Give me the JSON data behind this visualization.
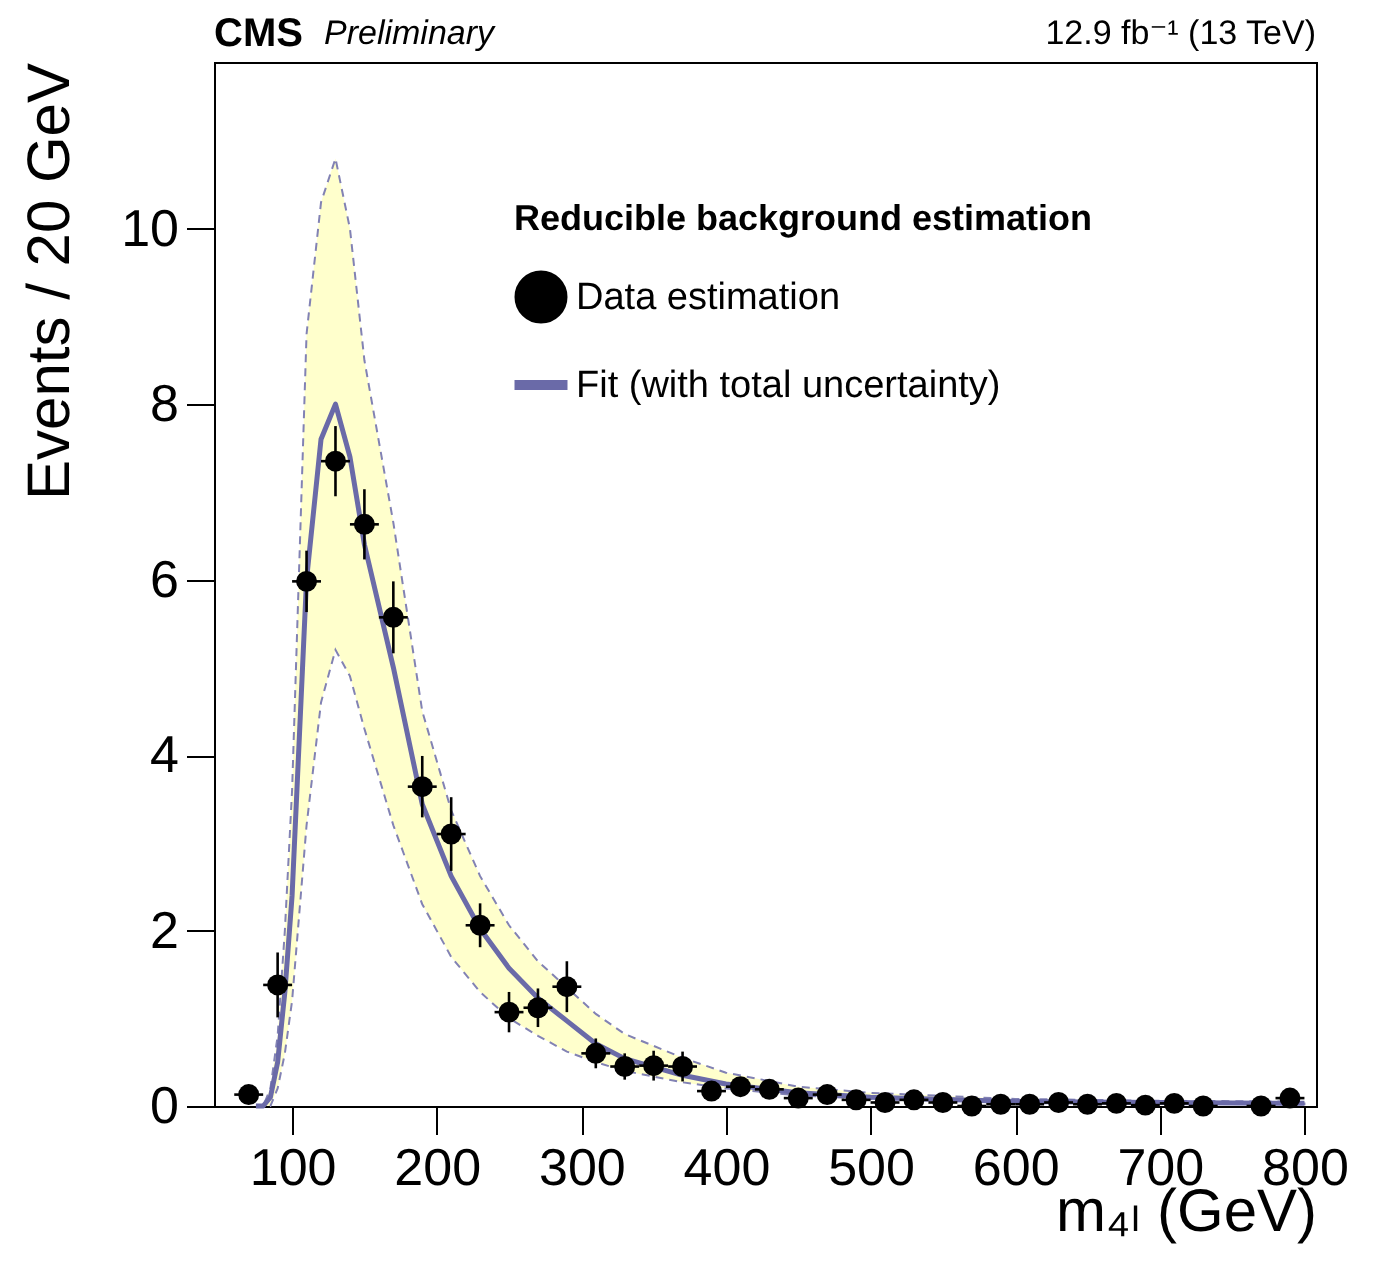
{
  "chart_data": {
    "type": "scatter",
    "title": "CMS",
    "subtitle": "Preliminary",
    "annotations": [
      "12.9 fb⁻¹ (13 TeV)"
    ],
    "xlabel": "m₄ₗ (GeV)",
    "ylabel": "Events / 20 GeV",
    "legend_title": "Reducible background estimation",
    "xlim": [
      46,
      808
    ],
    "xticks": [
      100,
      200,
      300,
      400,
      500,
      600,
      700,
      800
    ],
    "ylim": [
      0,
      11.9
    ],
    "yticks": [
      0,
      2,
      4,
      6,
      8,
      10
    ],
    "grid": false,
    "legend": "top right",
    "series": [
      {
        "name": "Data estimation",
        "color": "#000000",
        "marker": "circle",
        "x": [
          70,
          90,
          110,
          130,
          150,
          170,
          190,
          210,
          230,
          250,
          270,
          290,
          310,
          330,
          350,
          370,
          390,
          410,
          430,
          450,
          470,
          490,
          510,
          530,
          550,
          570,
          590,
          610,
          630,
          650,
          670,
          690,
          710,
          730,
          770,
          790
        ],
        "values": [
          0.13,
          1.38,
          5.98,
          7.35,
          6.63,
          5.57,
          3.64,
          3.1,
          2.06,
          1.07,
          1.12,
          1.36,
          0.6,
          0.45,
          0.46,
          0.45,
          0.17,
          0.22,
          0.19,
          0.09,
          0.13,
          0.07,
          0.04,
          0.07,
          0.04,
          0,
          0.02,
          0.02,
          0.04,
          0.02,
          0.03,
          0.01,
          0.03,
          0,
          0,
          0.09
        ],
        "errors": [
          null,
          0.37,
          0.35,
          0.4,
          0.4,
          0.41,
          0.35,
          0.42,
          0.25,
          0.23,
          0.22,
          0.29,
          0.17,
          0.15,
          0.17,
          0.17,
          null,
          null,
          null,
          null,
          null,
          null,
          null,
          null,
          null,
          null,
          null,
          null,
          null,
          null,
          null,
          null,
          null,
          null,
          null,
          null
        ],
        "xerrors": [
          10,
          10,
          10,
          10,
          10,
          10,
          10,
          10,
          10,
          10,
          10,
          10,
          10,
          10,
          10,
          10,
          10,
          10,
          10,
          10,
          10,
          10,
          10,
          10,
          10,
          10,
          10,
          10,
          10,
          10,
          10,
          10,
          10,
          10,
          10,
          10
        ]
      },
      {
        "name": "Fit (with total uncertainty)",
        "type": "line",
        "color": "#6a6aa8",
        "marker": "none",
        "line_style": "solid",
        "x": [
          75,
          80,
          85,
          90,
          95,
          100,
          105,
          110,
          120,
          130,
          140,
          150,
          170,
          190,
          210,
          230,
          250,
          270,
          290,
          310,
          330,
          370,
          400,
          450,
          500,
          600,
          700,
          800
        ],
        "values": [
          0,
          0,
          0.1,
          0.5,
          1.3,
          2.4,
          4.2,
          6.0,
          7.6,
          8.0,
          7.4,
          6.4,
          5.0,
          3.44,
          2.62,
          2.02,
          1.57,
          1.23,
          0.97,
          0.71,
          0.54,
          0.35,
          0.25,
          0.15,
          0.1,
          0.05,
          0.04,
          0.03
        ],
        "lower": [
          0,
          0,
          0,
          0.2,
          0.6,
          1.2,
          2.2,
          3.2,
          4.6,
          5.2,
          4.9,
          4.3,
          3.2,
          2.3,
          1.7,
          1.3,
          1.0,
          0.8,
          0.62,
          0.5,
          0.4,
          0.27,
          0.2,
          0.12,
          0.08,
          0.04,
          0.03,
          0.02
        ],
        "upper": [
          0,
          0,
          0.2,
          0.8,
          2.0,
          3.6,
          6.2,
          8.8,
          10.3,
          10.8,
          10.0,
          8.5,
          6.65,
          4.5,
          3.37,
          2.62,
          2.06,
          1.65,
          1.35,
          1.05,
          0.82,
          0.55,
          0.38,
          0.22,
          0.15,
          0.08,
          0.06,
          0.05
        ]
      }
    ]
  }
}
